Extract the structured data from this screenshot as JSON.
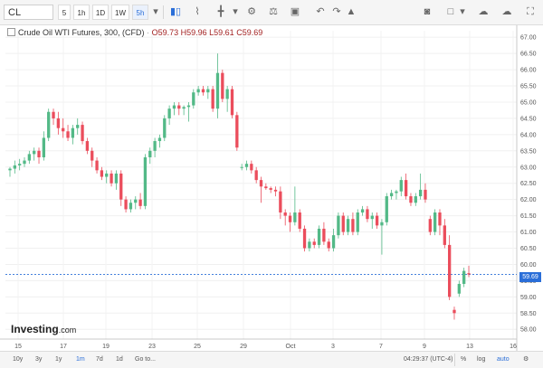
{
  "toolbar": {
    "symbol": "CL",
    "timeframes": [
      "5",
      "1h",
      "1D",
      "1W",
      "5h"
    ],
    "active_timeframe": "5h"
  },
  "legend": {
    "title": "Crude Oil WTI Futures, 300, (CFD)",
    "open": "O59.73",
    "high": "H59.96",
    "low": "L59.61",
    "close": "C59.69"
  },
  "logo": {
    "name": "Investing",
    "suffix": ".com"
  },
  "last_price_label": "59.69",
  "bottom_bar": {
    "ranges": [
      "10y",
      "3y",
      "1y",
      "1m",
      "7d",
      "1d",
      "Go to..."
    ],
    "active_range": "1m",
    "clock": "04:29:37 (UTC-4)",
    "percent": "%",
    "log": "log",
    "auto": "auto"
  },
  "colors": {
    "up": "#53b987",
    "down": "#eb4d5c",
    "price_line": "#2a6ed8"
  },
  "chart_data": {
    "type": "candlestick",
    "y_ticks": [
      "58.00",
      "58.50",
      "59.00",
      "59.50",
      "60.00",
      "60.50",
      "61.00",
      "61.50",
      "62.00",
      "62.50",
      "63.00",
      "63.50",
      "64.00",
      "64.50",
      "65.00",
      "65.50",
      "66.00",
      "66.50",
      "67.00"
    ],
    "x_ticks": [
      "15",
      "17",
      "19",
      "23",
      "25",
      "29",
      "Oct",
      "3",
      "7",
      "9",
      "13",
      "16"
    ],
    "ylim": [
      57.7,
      67.2
    ],
    "last_price": 59.69,
    "candles": [
      [
        62.9,
        63.0,
        62.7,
        62.95
      ],
      [
        62.95,
        63.2,
        62.8,
        63.05
      ],
      [
        63.05,
        63.25,
        62.9,
        63.1
      ],
      [
        63.1,
        63.3,
        63.0,
        63.2
      ],
      [
        63.2,
        63.5,
        63.1,
        63.4
      ],
      [
        63.4,
        63.6,
        63.2,
        63.5
      ],
      [
        63.5,
        63.6,
        63.1,
        63.3
      ],
      [
        63.3,
        64.1,
        63.2,
        63.9
      ],
      [
        63.9,
        64.8,
        63.8,
        64.7
      ],
      [
        64.7,
        64.8,
        64.3,
        64.5
      ],
      [
        64.5,
        64.7,
        64.0,
        64.2
      ],
      [
        64.2,
        64.5,
        63.9,
        64.1
      ],
      [
        64.1,
        64.3,
        63.8,
        63.9
      ],
      [
        63.9,
        64.3,
        63.7,
        64.2
      ],
      [
        64.2,
        64.5,
        64.0,
        64.3
      ],
      [
        64.3,
        64.4,
        63.7,
        63.8
      ],
      [
        63.8,
        63.9,
        63.4,
        63.5
      ],
      [
        63.5,
        63.6,
        63.0,
        63.2
      ],
      [
        63.2,
        63.3,
        62.8,
        62.9
      ],
      [
        62.9,
        63.0,
        62.6,
        62.7
      ],
      [
        62.7,
        62.9,
        62.5,
        62.8
      ],
      [
        62.8,
        62.9,
        62.4,
        62.5
      ],
      [
        62.5,
        62.9,
        62.3,
        62.8
      ],
      [
        62.8,
        62.9,
        61.8,
        62.0
      ],
      [
        62.0,
        62.1,
        61.6,
        61.7
      ],
      [
        61.7,
        62.0,
        61.6,
        61.9
      ],
      [
        61.9,
        62.1,
        61.7,
        62.0
      ],
      [
        62.0,
        62.2,
        61.7,
        61.8
      ],
      [
        61.8,
        63.4,
        61.7,
        63.3
      ],
      [
        63.3,
        63.6,
        63.1,
        63.5
      ],
      [
        63.5,
        63.9,
        63.3,
        63.8
      ],
      [
        63.8,
        64.0,
        63.6,
        63.9
      ],
      [
        63.9,
        64.6,
        63.8,
        64.5
      ],
      [
        64.5,
        64.9,
        64.3,
        64.8
      ],
      [
        64.8,
        65.0,
        64.6,
        64.9
      ],
      [
        64.9,
        65.0,
        64.6,
        64.8
      ],
      [
        64.8,
        64.9,
        64.6,
        64.85
      ],
      [
        64.85,
        65.0,
        64.4,
        64.9
      ],
      [
        64.9,
        65.4,
        64.8,
        65.3
      ],
      [
        65.3,
        65.5,
        65.2,
        65.4
      ],
      [
        65.4,
        65.5,
        65.2,
        65.3
      ],
      [
        65.3,
        65.5,
        65.1,
        65.4
      ],
      [
        65.4,
        65.5,
        64.7,
        64.8
      ],
      [
        64.8,
        66.5,
        64.5,
        65.9
      ],
      [
        65.9,
        66.0,
        65.0,
        65.1
      ],
      [
        65.1,
        65.5,
        64.7,
        65.4
      ],
      [
        65.4,
        65.5,
        64.5,
        64.6
      ],
      [
        64.6,
        64.7,
        63.5,
        63.6
      ],
      [
        63.0,
        63.1,
        62.9,
        63.0
      ],
      [
        63.0,
        63.2,
        62.9,
        63.1
      ],
      [
        63.1,
        63.2,
        62.8,
        62.9
      ],
      [
        62.9,
        63.0,
        62.5,
        62.6
      ],
      [
        62.6,
        62.7,
        61.9,
        62.4
      ],
      [
        62.4,
        62.5,
        62.3,
        62.35
      ],
      [
        62.35,
        62.4,
        62.2,
        62.3
      ],
      [
        62.3,
        62.4,
        62.1,
        62.25
      ],
      [
        62.25,
        62.4,
        61.4,
        61.6
      ],
      [
        61.6,
        61.7,
        61.2,
        61.5
      ],
      [
        61.5,
        61.6,
        61.0,
        61.3
      ],
      [
        61.3,
        62.4,
        61.2,
        61.6
      ],
      [
        61.6,
        61.7,
        61.0,
        61.1
      ],
      [
        61.1,
        61.2,
        60.4,
        60.5
      ],
      [
        60.5,
        60.8,
        60.4,
        60.7
      ],
      [
        60.7,
        60.8,
        60.5,
        60.6
      ],
      [
        60.6,
        61.2,
        60.5,
        61.1
      ],
      [
        61.1,
        61.3,
        60.6,
        60.7
      ],
      [
        60.7,
        60.8,
        60.4,
        60.5
      ],
      [
        60.5,
        61.1,
        60.4,
        60.9
      ],
      [
        60.9,
        61.6,
        60.8,
        61.5
      ],
      [
        61.5,
        61.6,
        60.9,
        61.0
      ],
      [
        61.0,
        61.5,
        60.9,
        61.4
      ],
      [
        61.4,
        61.6,
        60.9,
        61.0
      ],
      [
        61.0,
        61.7,
        60.9,
        61.6
      ],
      [
        61.6,
        61.8,
        61.5,
        61.7
      ],
      [
        61.7,
        61.8,
        61.3,
        61.4
      ],
      [
        61.4,
        61.6,
        61.1,
        61.5
      ],
      [
        61.5,
        61.6,
        61.1,
        61.2
      ],
      [
        61.2,
        61.4,
        60.3,
        61.3
      ],
      [
        61.3,
        62.2,
        61.2,
        62.1
      ],
      [
        62.1,
        62.3,
        62.0,
        62.2
      ],
      [
        62.2,
        62.3,
        62.0,
        62.25
      ],
      [
        62.25,
        62.7,
        62.1,
        62.6
      ],
      [
        62.6,
        62.8,
        62.0,
        62.1
      ],
      [
        62.1,
        62.2,
        61.8,
        61.9
      ],
      [
        61.9,
        62.2,
        61.8,
        62.1
      ],
      [
        62.1,
        62.8,
        62.0,
        62.3
      ],
      [
        62.3,
        62.5,
        61.9,
        62.0
      ],
      [
        61.4,
        61.5,
        60.9,
        61.0
      ],
      [
        61.0,
        61.7,
        60.9,
        61.6
      ],
      [
        61.6,
        61.7,
        60.9,
        61.2
      ],
      [
        61.2,
        61.4,
        60.5,
        60.6
      ],
      [
        60.6,
        60.9,
        58.9,
        59.0
      ],
      [
        58.6,
        58.7,
        58.3,
        58.5
      ],
      [
        59.1,
        59.5,
        59.0,
        59.4
      ],
      [
        59.4,
        59.9,
        59.3,
        59.8
      ],
      [
        59.73,
        59.96,
        59.61,
        59.69
      ]
    ]
  }
}
